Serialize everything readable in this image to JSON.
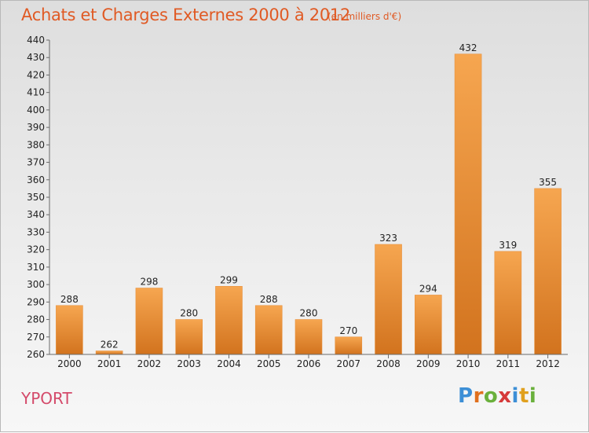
{
  "header": {
    "title": "Achats et Charges Externes 2000 à 2012",
    "subtitle": "(en milliers d'€)"
  },
  "footer": {
    "commune": "YPORT",
    "logo": {
      "letters": [
        "P",
        "r",
        "o",
        "x",
        "i",
        "t",
        "i"
      ],
      "colors": [
        "#3d8fd6",
        "#e0701e",
        "#6ab03c",
        "#d63a3a",
        "#3d8fd6",
        "#e0a01e",
        "#6ab03c"
      ]
    }
  },
  "chart_data": {
    "type": "bar",
    "title": "Achats et Charges Externes 2000 à 2012",
    "subtitle": "(en milliers d'€)",
    "xlabel": "",
    "ylabel": "",
    "categories": [
      "2000",
      "2001",
      "2002",
      "2003",
      "2004",
      "2005",
      "2006",
      "2007",
      "2008",
      "2009",
      "2010",
      "2011",
      "2012"
    ],
    "values": [
      288,
      262,
      298,
      280,
      299,
      288,
      280,
      270,
      323,
      294,
      432,
      319,
      355
    ],
    "ylim": [
      260,
      440
    ],
    "yticks": [
      260,
      270,
      280,
      290,
      300,
      310,
      320,
      330,
      340,
      350,
      360,
      370,
      380,
      390,
      400,
      410,
      420,
      430,
      440
    ],
    "grid": false,
    "colors": {
      "bar_top": "#f6a650",
      "bar_bottom": "#d2731e",
      "axis": "#6a6a6a"
    }
  }
}
